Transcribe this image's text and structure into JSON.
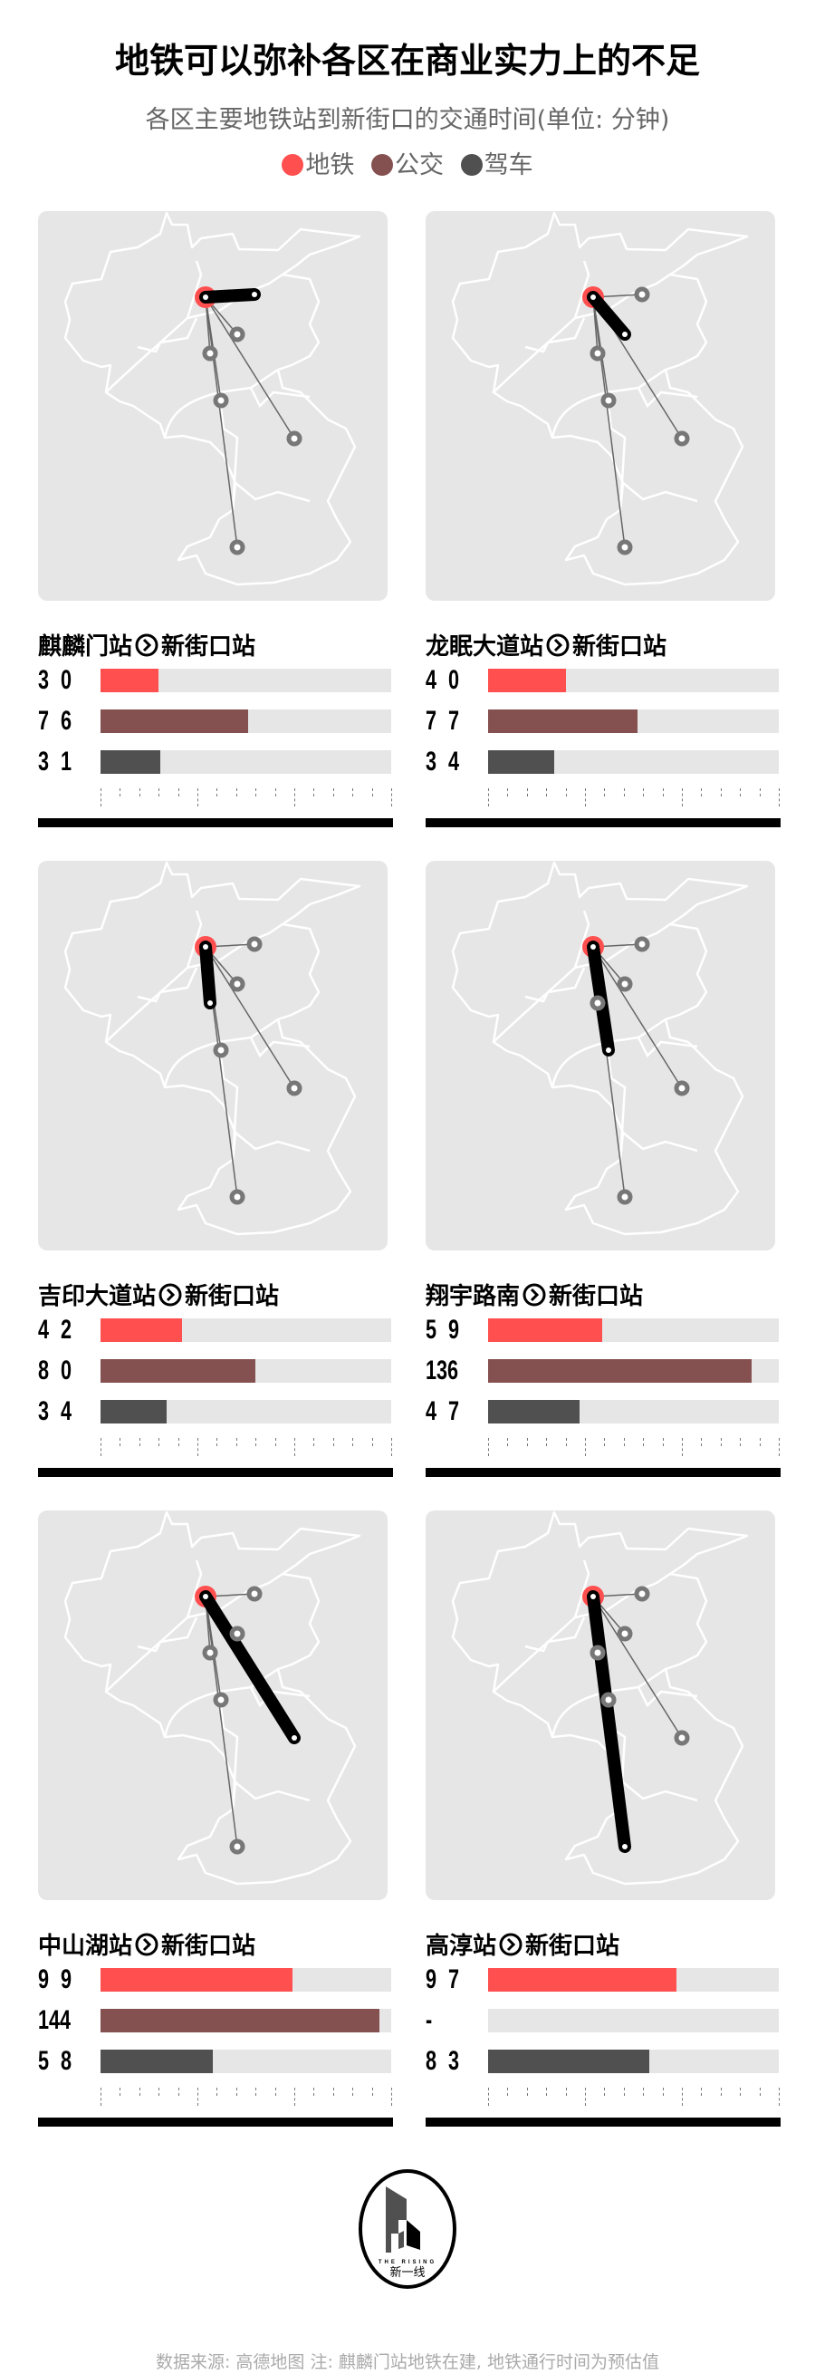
{
  "title": "地铁可以弥补各区在商业实力上的不足",
  "subtitle": "各区主要地铁站到新街口的交通时间(单位: 分钟)",
  "legend": [
    {
      "label": "地铁",
      "color": "#ff4f4f"
    },
    {
      "label": "公交",
      "color": "#855050"
    },
    {
      "label": "驾车",
      "color": "#505050"
    }
  ],
  "destination": "新街口站",
  "arrow_icon": "circled-chevron-right-icon",
  "chart_data": {
    "type": "bar",
    "unit": "分钟",
    "xlim": [
      0,
      150
    ],
    "major_tick_step": 50,
    "minor_tick_step": 10,
    "series_names": [
      "地铁",
      "公交",
      "驾车"
    ],
    "panels": [
      {
        "origin": "麒麟门站",
        "values": [
          30,
          76,
          31
        ],
        "labels": [
          "30",
          "76",
          "31"
        ]
      },
      {
        "origin": "龙眠大道站",
        "values": [
          40,
          77,
          34
        ],
        "labels": [
          "40",
          "77",
          "34"
        ]
      },
      {
        "origin": "吉印大道站",
        "values": [
          42,
          80,
          34
        ],
        "labels": [
          "42",
          "80",
          "34"
        ]
      },
      {
        "origin": "翔宇路南",
        "values": [
          59,
          136,
          47
        ],
        "labels": [
          "59",
          "136",
          "47"
        ]
      },
      {
        "origin": "中山湖站",
        "values": [
          99,
          144,
          58
        ],
        "labels": [
          "99",
          "144",
          "58"
        ]
      },
      {
        "origin": "高淳站",
        "values": [
          97,
          null,
          83
        ],
        "labels": [
          "97",
          "-",
          "83"
        ]
      }
    ]
  },
  "logo": {
    "text_en": "THE RISING",
    "text_cn": "新一线"
  },
  "footnote": "数据来源: 高德地图  注: 麒麟门站地铁在建, 地铁通行时间为预估值"
}
